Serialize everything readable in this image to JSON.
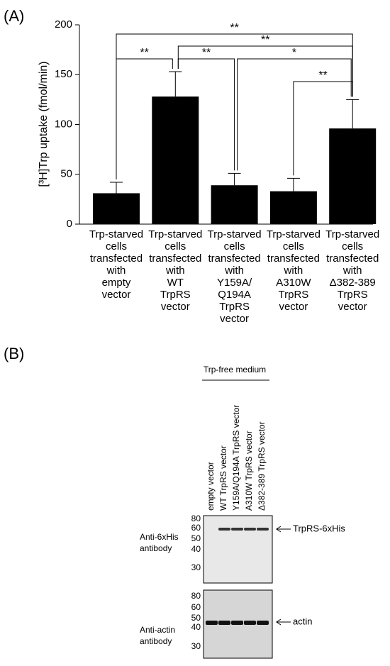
{
  "chart_data": {
    "type": "bar",
    "panel_label": "(A)",
    "y_label": "[³H]Trp uptake (fmol/min)",
    "categories": [
      "Trp-starved\ncells\ntransfected\nwith\nempty\nvector",
      "Trp-starved\ncells\ntransfected\nwith\nWT\nTrpRS\nvector",
      "Trp-starved\ncells\ntransfected\nwith\nY159A/\nQ194A\nTrpRS\nvector",
      "Trp-starved\ncells\ntransfected\nwith\nA310W\nTrpRS\nvector",
      "Trp-starved\ncells\ntransfected\nwith\nΔ382-389\nTrpRS\nvector"
    ],
    "values": [
      31,
      128,
      39,
      33,
      96
    ],
    "errors": [
      11,
      25,
      12,
      13,
      29
    ],
    "color": "#000000",
    "ylim": [
      0,
      200
    ],
    "yticks": [
      0,
      50,
      100,
      150,
      200
    ],
    "significance": [
      {
        "bars": [
          0,
          1
        ],
        "label": "**"
      },
      {
        "bars": [
          1,
          2
        ],
        "label": "**"
      },
      {
        "bars": [
          1,
          4
        ],
        "label": "**"
      },
      {
        "bars": [
          0,
          4
        ],
        "label": "**"
      },
      {
        "bars": [
          2,
          4
        ],
        "label": "*"
      },
      {
        "bars": [
          3,
          4
        ],
        "label": "**"
      }
    ]
  },
  "blot": {
    "panel_label": "(B)",
    "condition": "Trp-free medium",
    "lanes": [
      "empty vector",
      "WT TrpRS vector",
      "Y159A/Q194A TrpRS vector",
      "A310W TrpRS vector",
      "Δ382-389 TrpRS vector"
    ],
    "panels": [
      {
        "antibody": "Anti-6xHis\nantibody",
        "markers": [
          80,
          60,
          50,
          40,
          30
        ],
        "band": "TrpRS-6xHis"
      },
      {
        "antibody": "Anti-actin\nantibody",
        "markers": [
          80,
          60,
          50,
          40,
          30
        ],
        "band": "actin"
      }
    ]
  }
}
